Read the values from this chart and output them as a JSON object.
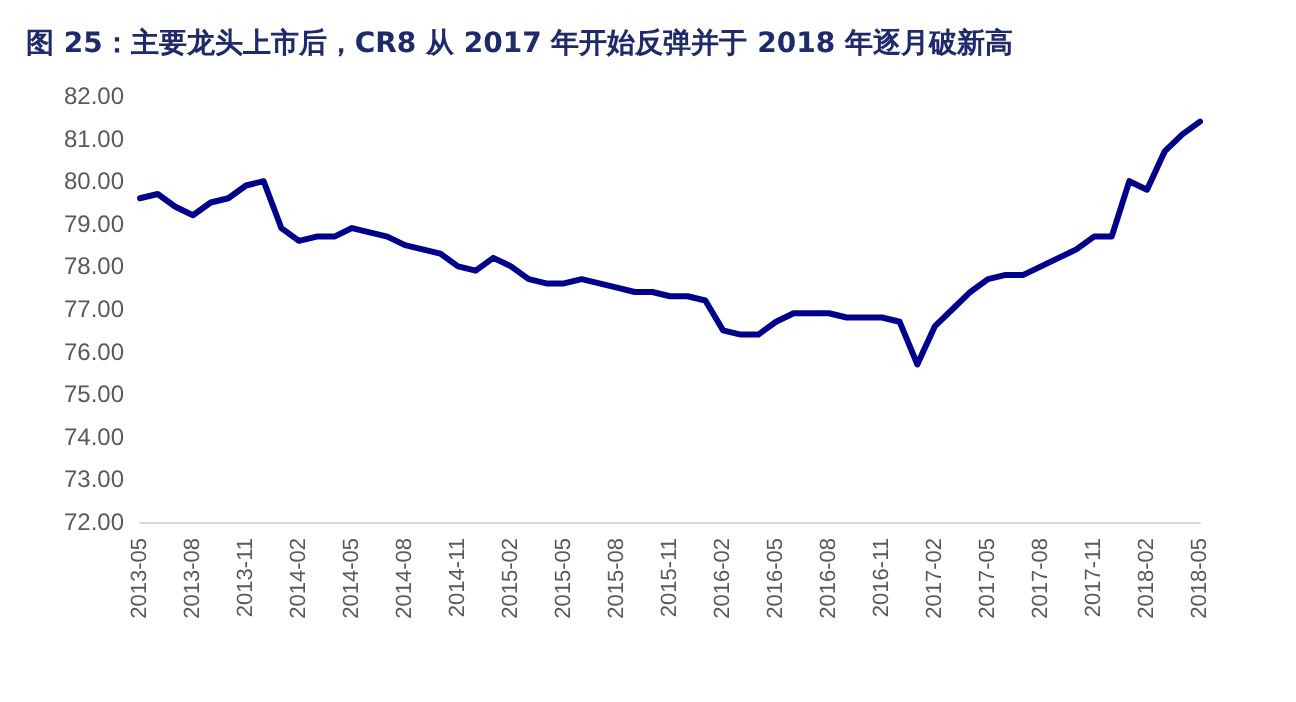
{
  "chart_data": {
    "type": "line",
    "title": "图 25：主要龙头上市后，CR8 从 2017 年开始反弹并于 2018 年逐月破新高",
    "categories": [
      "2013-05",
      null,
      null,
      "2013-08",
      null,
      null,
      "2013-11",
      null,
      null,
      "2014-02",
      null,
      null,
      "2014-05",
      null,
      null,
      "2014-08",
      null,
      null,
      "2014-11",
      null,
      null,
      "2015-02",
      null,
      null,
      "2015-05",
      null,
      null,
      "2015-08",
      null,
      null,
      "2015-11",
      null,
      null,
      "2016-02",
      null,
      null,
      "2016-05",
      null,
      null,
      "2016-08",
      null,
      null,
      "2016-11",
      null,
      null,
      "2017-02",
      null,
      null,
      "2017-05",
      null,
      null,
      "2017-08",
      null,
      null,
      "2017-11",
      null,
      null,
      "2018-02",
      null,
      null,
      "2018-05"
    ],
    "series": [
      {
        "color": "#00008b",
        "values": [
          79.6,
          79.7,
          79.4,
          79.2,
          79.5,
          79.6,
          79.9,
          80.0,
          78.9,
          78.6,
          78.7,
          78.7,
          78.9,
          78.8,
          78.7,
          78.5,
          78.4,
          78.3,
          78.0,
          77.9,
          78.2,
          78.0,
          77.7,
          77.6,
          77.6,
          77.7,
          77.6,
          77.5,
          77.4,
          77.4,
          77.3,
          77.3,
          77.2,
          76.5,
          76.4,
          76.4,
          76.7,
          76.9,
          76.9,
          76.9,
          76.8,
          76.8,
          76.8,
          76.7,
          75.7,
          76.6,
          77.0,
          77.4,
          77.7,
          77.8,
          77.8,
          78.0,
          78.2,
          78.4,
          78.7,
          78.7,
          80.0,
          79.8,
          80.7,
          81.1,
          81.4
        ]
      }
    ],
    "ylim": [
      72,
      82
    ],
    "yticks": [
      {
        "value": 72,
        "label": "72.00"
      },
      {
        "value": 73,
        "label": "73.00"
      },
      {
        "value": 74,
        "label": "74.00"
      },
      {
        "value": 75,
        "label": "75.00"
      },
      {
        "value": 76,
        "label": "76.00"
      },
      {
        "value": 77,
        "label": "77.00"
      },
      {
        "value": 78,
        "label": "78.00"
      },
      {
        "value": 79,
        "label": "79.00"
      },
      {
        "value": 80,
        "label": "80.00"
      },
      {
        "value": 81,
        "label": "81.00"
      },
      {
        "value": 82,
        "label": "82.00"
      }
    ],
    "grid": false,
    "marker": "none",
    "line_style": "solid"
  }
}
